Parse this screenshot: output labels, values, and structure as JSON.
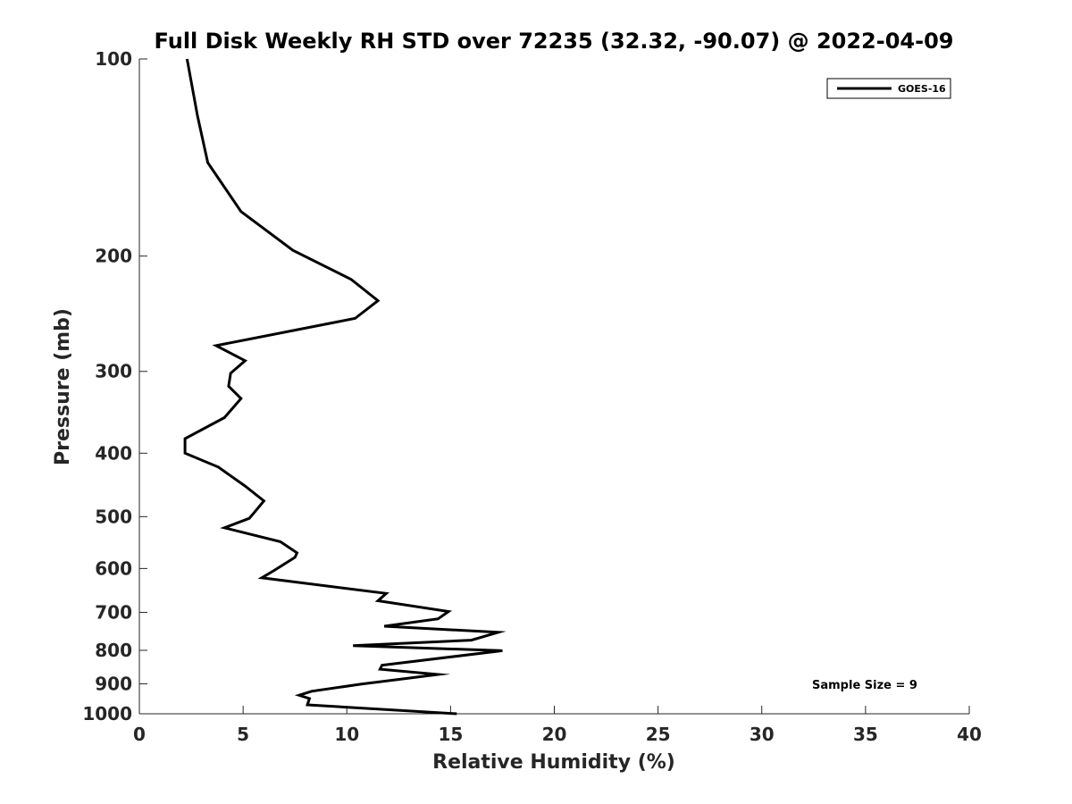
{
  "chart_data": {
    "type": "line",
    "title": "Full Disk Weekly RH STD over 72235 (32.32, -90.07) @ 2022-04-09",
    "xlabel": "Relative Humidity (%)",
    "ylabel": "Pressure (mb)",
    "xlim": [
      0,
      40
    ],
    "ylim": [
      100,
      1000
    ],
    "y_scale": "log",
    "y_reversed": true,
    "xticks": [
      0,
      5,
      10,
      15,
      20,
      25,
      30,
      35,
      40
    ],
    "yticks": [
      100,
      200,
      300,
      400,
      500,
      600,
      700,
      800,
      900,
      1000
    ],
    "grid": false,
    "legend_position": "top-right",
    "annotation": "Sample Size = 9",
    "series": [
      {
        "name": "GOES-16",
        "color": "#000000",
        "points": [
          [
            2.3,
            100
          ],
          [
            2.8,
            122
          ],
          [
            3.3,
            144
          ],
          [
            4.9,
            171
          ],
          [
            7.4,
            196
          ],
          [
            10.2,
            217
          ],
          [
            11.5,
            234
          ],
          [
            10.4,
            249
          ],
          [
            3.7,
            274
          ],
          [
            5.1,
            289
          ],
          [
            4.4,
            302
          ],
          [
            4.3,
            316
          ],
          [
            4.9,
            330
          ],
          [
            4.1,
            353
          ],
          [
            2.2,
            380
          ],
          [
            2.2,
            400
          ],
          [
            3.8,
            420
          ],
          [
            5.1,
            449
          ],
          [
            6.0,
            473
          ],
          [
            5.6,
            490
          ],
          [
            5.3,
            503
          ],
          [
            4.1,
            520
          ],
          [
            6.8,
            546
          ],
          [
            7.6,
            568
          ],
          [
            7.5,
            577
          ],
          [
            6.5,
            604
          ],
          [
            5.9,
            620
          ],
          [
            11.9,
            655
          ],
          [
            11.5,
            672
          ],
          [
            14.9,
            698
          ],
          [
            14.4,
            716
          ],
          [
            11.8,
            735
          ],
          [
            17.3,
            751
          ],
          [
            16.0,
            772
          ],
          [
            10.3,
            787
          ],
          [
            17.5,
            801
          ],
          [
            11.7,
            843
          ],
          [
            11.6,
            855
          ],
          [
            14.4,
            871
          ],
          [
            10.7,
            901
          ],
          [
            8.3,
            924
          ],
          [
            7.7,
            937
          ],
          [
            8.2,
            948
          ],
          [
            8.1,
            969
          ],
          [
            15.3,
            1000
          ]
        ]
      }
    ]
  }
}
